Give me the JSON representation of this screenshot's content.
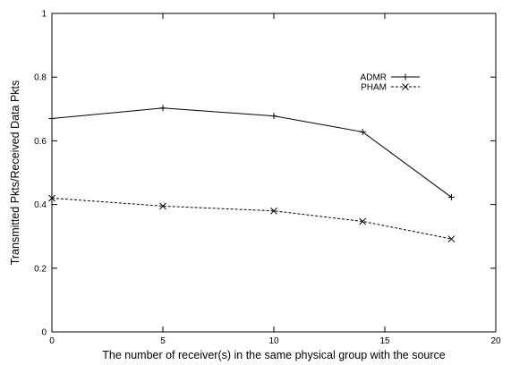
{
  "chart_data": {
    "type": "line",
    "title": "",
    "xlabel": "The number of receiver(s) in the same physical group with the source",
    "ylabel": "Transmitted Pkts/Received Data Pkts",
    "xlim": [
      0,
      20
    ],
    "ylim": [
      0,
      1
    ],
    "xticks": [
      0,
      5,
      10,
      15,
      20
    ],
    "yticks": [
      0,
      0.2,
      0.4,
      0.6,
      0.8,
      1
    ],
    "ytick_labels": [
      "0",
      "0.2",
      "0.4",
      "0.6",
      "0.8",
      "1"
    ],
    "grid": false,
    "legend_position": "upper-right",
    "series": [
      {
        "name": "ADMR",
        "x": [
          0,
          5,
          10,
          14,
          18
        ],
        "y": [
          0.67,
          0.703,
          0.678,
          0.628,
          0.423
        ],
        "line_style": "solid",
        "marker": "plus",
        "color": "#000000"
      },
      {
        "name": "PHAM",
        "x": [
          0,
          5,
          10,
          14,
          18
        ],
        "y": [
          0.42,
          0.395,
          0.38,
          0.347,
          0.292
        ],
        "line_style": "dashed",
        "marker": "cross",
        "color": "#000000"
      }
    ]
  }
}
